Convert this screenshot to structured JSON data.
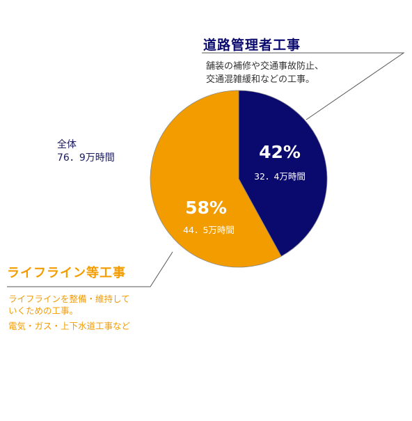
{
  "chart_data": {
    "type": "pie",
    "unit": "万時間",
    "total": {
      "label": "全体",
      "value_text": "76．9万時間"
    },
    "slices": [
      {
        "name": "道路管理者工事",
        "description": [
          "舗装の補修や交通事故防止、",
          "交通混雑緩和などの工事。"
        ],
        "percent": 42,
        "percent_label": "42%",
        "value": 32.4,
        "value_label": "32．4万時間",
        "color": "#0a0a6e"
      },
      {
        "name": "ライフライン等工事",
        "description": [
          "ライフラインを整備・維持して",
          "いくための工事。"
        ],
        "note": "電気・ガス・上下水道工事など",
        "percent": 58,
        "percent_label": "58%",
        "value": 44.5,
        "value_label": "44．5万時間",
        "color": "#f39c00"
      }
    ]
  }
}
